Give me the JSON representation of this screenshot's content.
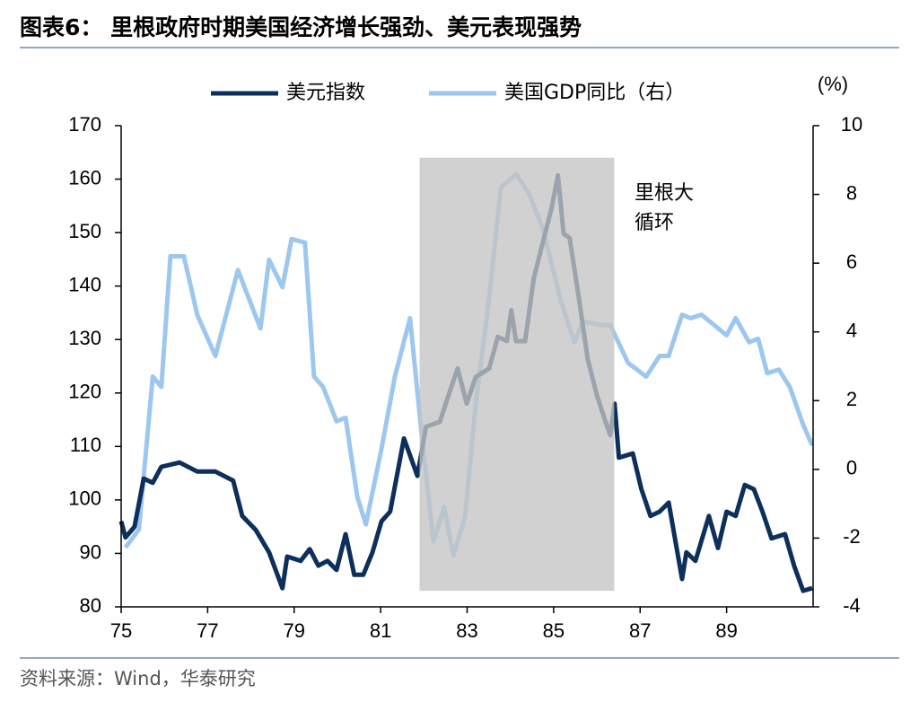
{
  "chart_data": {
    "type": "line",
    "title": "图表6： 里根政府时期美国经济增长强劲、美元表现强势",
    "y2_unit": "(%)",
    "source": "资料来源：Wind，华泰研究",
    "annotation": [
      "里根大",
      "循环"
    ],
    "shade": {
      "x": [
        81.9,
        86.4
      ],
      "y": [
        164,
        83
      ],
      "color": "#c4c4c4"
    },
    "xlim": [
      75,
      91
    ],
    "xticks": [
      75,
      77,
      79,
      81,
      83,
      85,
      87,
      89
    ],
    "ylim": [
      80,
      170
    ],
    "yticks": [
      80,
      90,
      100,
      110,
      120,
      130,
      140,
      150,
      160,
      170
    ],
    "y2lim": [
      -4,
      10
    ],
    "y2ticks": [
      -4,
      -2,
      0,
      2,
      4,
      6,
      8,
      10
    ],
    "series": [
      {
        "name": "美元指数",
        "color": "#0c2f5c",
        "x": [
          75.0,
          75.1,
          75.31,
          75.52,
          75.73,
          75.93,
          76.35,
          76.76,
          77.18,
          77.59,
          77.8,
          78.11,
          78.42,
          78.73,
          78.84,
          79.15,
          79.36,
          79.56,
          79.77,
          79.98,
          80.19,
          80.39,
          80.6,
          80.81,
          81.02,
          81.22,
          81.54,
          81.85,
          82.05,
          82.37,
          82.57,
          82.78,
          82.99,
          83.2,
          83.51,
          83.71,
          83.92,
          84.02,
          84.13,
          84.34,
          84.54,
          84.75,
          84.96,
          85.1,
          85.23,
          85.37,
          85.58,
          85.79,
          86.0,
          86.2,
          86.31,
          86.41,
          86.51,
          86.83,
          87.03,
          87.24,
          87.45,
          87.66,
          87.97,
          88.07,
          88.28,
          88.59,
          88.8,
          89.0,
          89.21,
          89.42,
          89.63,
          89.83,
          90.04,
          90.35,
          90.56,
          90.77,
          90.98
        ],
        "values": [
          96.0,
          93.0,
          95.0,
          104.0,
          103.2,
          106.2,
          107.0,
          105.3,
          105.3,
          103.6,
          97.0,
          94.4,
          90.2,
          83.5,
          89.4,
          88.6,
          90.8,
          87.7,
          88.6,
          86.9,
          93.6,
          86.0,
          86.0,
          90.2,
          96.0,
          97.8,
          111.5,
          104.5,
          113.7,
          114.6,
          119.6,
          124.6,
          118.0,
          123.0,
          124.6,
          130.5,
          129.7,
          135.5,
          129.7,
          129.7,
          141.4,
          148.1,
          154.8,
          160.7,
          149.8,
          149.0,
          138.0,
          126.3,
          119.6,
          114.6,
          112.1,
          118.0,
          107.9,
          108.7,
          102.0,
          97.0,
          97.8,
          99.5,
          85.2,
          90.2,
          88.6,
          97.0,
          91.0,
          97.8,
          97.0,
          102.8,
          102.0,
          97.8,
          92.8,
          93.6,
          87.7,
          83.0,
          83.5
        ]
      },
      {
        "name": "美国GDP同比（右）",
        "color": "#9dc7ef",
        "axis": "y2",
        "x": [
          75.1,
          75.41,
          75.73,
          75.93,
          76.14,
          76.45,
          76.76,
          77.18,
          77.7,
          78.22,
          78.42,
          78.73,
          78.94,
          79.25,
          79.46,
          79.67,
          79.98,
          80.19,
          80.46,
          80.66,
          81.02,
          81.33,
          81.68,
          81.95,
          82.22,
          82.47,
          82.68,
          82.95,
          83.2,
          83.51,
          83.78,
          84.13,
          84.44,
          84.75,
          85.17,
          85.48,
          85.68,
          86.1,
          86.31,
          86.72,
          87.14,
          87.45,
          87.66,
          87.97,
          88.17,
          88.42,
          89.0,
          89.21,
          89.52,
          89.73,
          89.94,
          90.21,
          90.46,
          90.77,
          90.98
        ],
        "values": [
          -2.27,
          -1.75,
          2.7,
          2.4,
          6.2,
          6.2,
          4.5,
          3.3,
          5.8,
          4.1,
          6.1,
          5.3,
          6.7,
          6.6,
          2.7,
          2.4,
          1.4,
          1.5,
          -0.8,
          -1.6,
          0.6,
          2.7,
          4.4,
          1.0,
          -2.1,
          -1.1,
          -2.5,
          -1.4,
          1.9,
          5.0,
          8.2,
          8.6,
          8.0,
          7.0,
          4.9,
          3.7,
          4.3,
          4.2,
          4.2,
          3.1,
          2.7,
          3.3,
          3.3,
          4.5,
          4.4,
          4.5,
          3.9,
          4.4,
          3.7,
          3.8,
          2.8,
          2.9,
          2.4,
          1.3,
          0.7
        ]
      }
    ]
  }
}
